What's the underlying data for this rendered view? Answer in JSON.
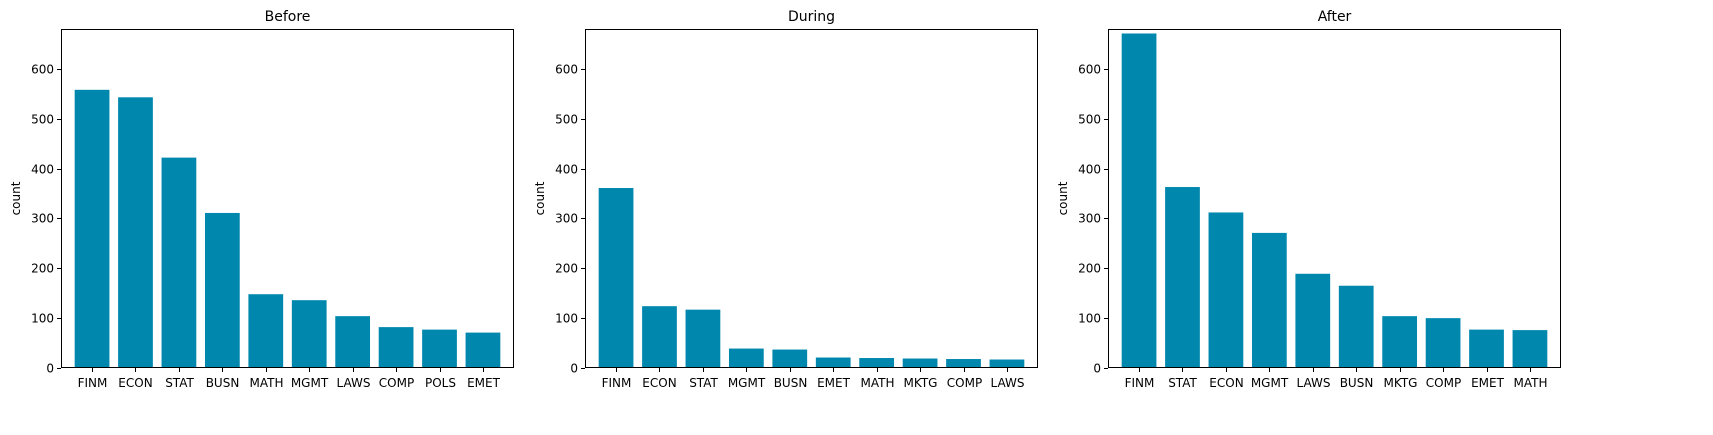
{
  "colors": {
    "bar": "#0087ad",
    "axis": "#000000",
    "background": "#ffffff"
  },
  "chart_data": [
    {
      "type": "bar",
      "title": "Before",
      "xlabel": "",
      "ylabel": "count",
      "ylim": [
        0,
        680
      ],
      "yticks": [
        0,
        100,
        200,
        300,
        400,
        500,
        600
      ],
      "categories": [
        "FINM",
        "ECON",
        "STAT",
        "BUSN",
        "MATH",
        "MGMT",
        "LAWS",
        "COMP",
        "POLS",
        "EMET"
      ],
      "values": [
        558,
        543,
        422,
        311,
        148,
        136,
        104,
        82,
        77,
        71
      ]
    },
    {
      "type": "bar",
      "title": "During",
      "xlabel": "",
      "ylabel": "count",
      "ylim": [
        0,
        680
      ],
      "yticks": [
        0,
        100,
        200,
        300,
        400,
        500,
        600
      ],
      "categories": [
        "FINM",
        "ECON",
        "STAT",
        "MGMT",
        "BUSN",
        "EMET",
        "MATH",
        "MKTG",
        "COMP",
        "LAWS"
      ],
      "values": [
        361,
        124,
        117,
        39,
        37,
        21,
        20,
        19,
        18,
        17
      ]
    },
    {
      "type": "bar",
      "title": "After",
      "xlabel": "",
      "ylabel": "count",
      "ylim": [
        0,
        680
      ],
      "yticks": [
        0,
        100,
        200,
        300,
        400,
        500,
        600
      ],
      "categories": [
        "FINM",
        "STAT",
        "ECON",
        "MGMT",
        "LAWS",
        "BUSN",
        "MKTG",
        "COMP",
        "EMET",
        "MATH"
      ],
      "values": [
        671,
        363,
        312,
        271,
        189,
        165,
        104,
        100,
        77,
        76
      ]
    }
  ]
}
